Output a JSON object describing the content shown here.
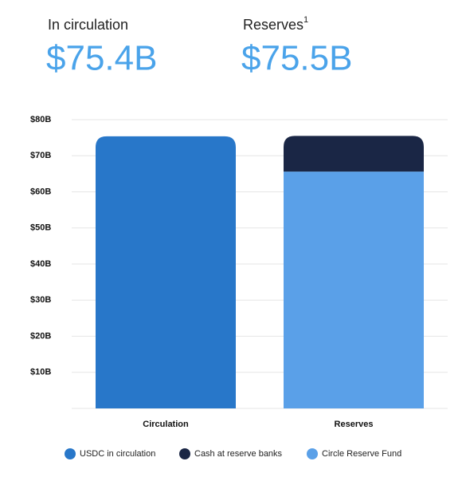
{
  "chart_data": {
    "type": "stacked_bar",
    "stats": [
      {
        "label": "In circulation",
        "value": "$75.4B"
      },
      {
        "label": "Reserves",
        "footnote": "1",
        "value": "$75.5B"
      }
    ],
    "categories": [
      "Circulation",
      "Reserves"
    ],
    "series": [
      {
        "name": "USDC in circulation",
        "color": "#2877c9",
        "values": [
          75.4,
          null
        ]
      },
      {
        "name": "Circle Reserve Fund",
        "color": "#5aa0e8",
        "values": [
          null,
          65.6
        ]
      },
      {
        "name": "Cash at reserve banks",
        "color": "#1a2645",
        "values": [
          null,
          9.9
        ]
      }
    ],
    "legend_order": [
      0,
      2,
      1
    ],
    "ylim": [
      0,
      80
    ],
    "yticks": [
      {
        "value": 10,
        "label": "$10B"
      },
      {
        "value": 20,
        "label": "$20B"
      },
      {
        "value": 30,
        "label": "$30B"
      },
      {
        "value": 40,
        "label": "$40B"
      },
      {
        "value": 50,
        "label": "$50B"
      },
      {
        "value": 60,
        "label": "$60B"
      },
      {
        "value": 70,
        "label": "$70B"
      },
      {
        "value": 80,
        "label": "$80B"
      }
    ],
    "grid": true
  }
}
